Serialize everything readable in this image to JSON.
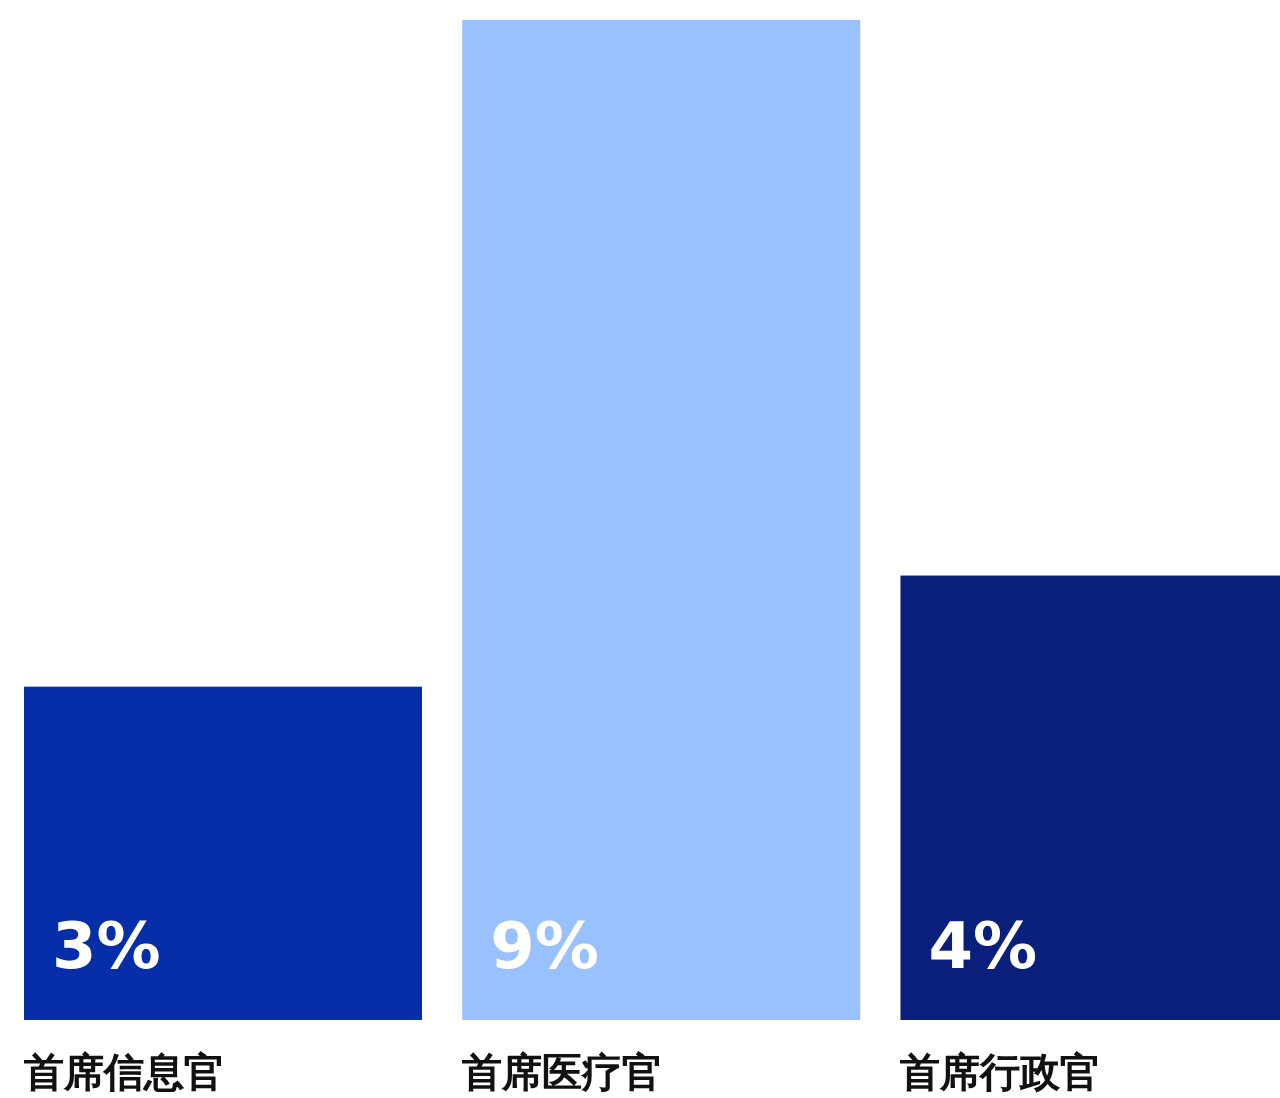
{
  "chart_data": {
    "type": "bar",
    "categories": [
      "首席信息官",
      "首席医疗官",
      "首席行政官"
    ],
    "values": [
      3,
      9,
      4
    ],
    "colors": [
      "#062ea8",
      "#99c1fd",
      "#0a1f7c"
    ],
    "value_labels": [
      "3%",
      "9%",
      "4%"
    ],
    "ylim": [
      0,
      9
    ],
    "tick_labels": false
  }
}
